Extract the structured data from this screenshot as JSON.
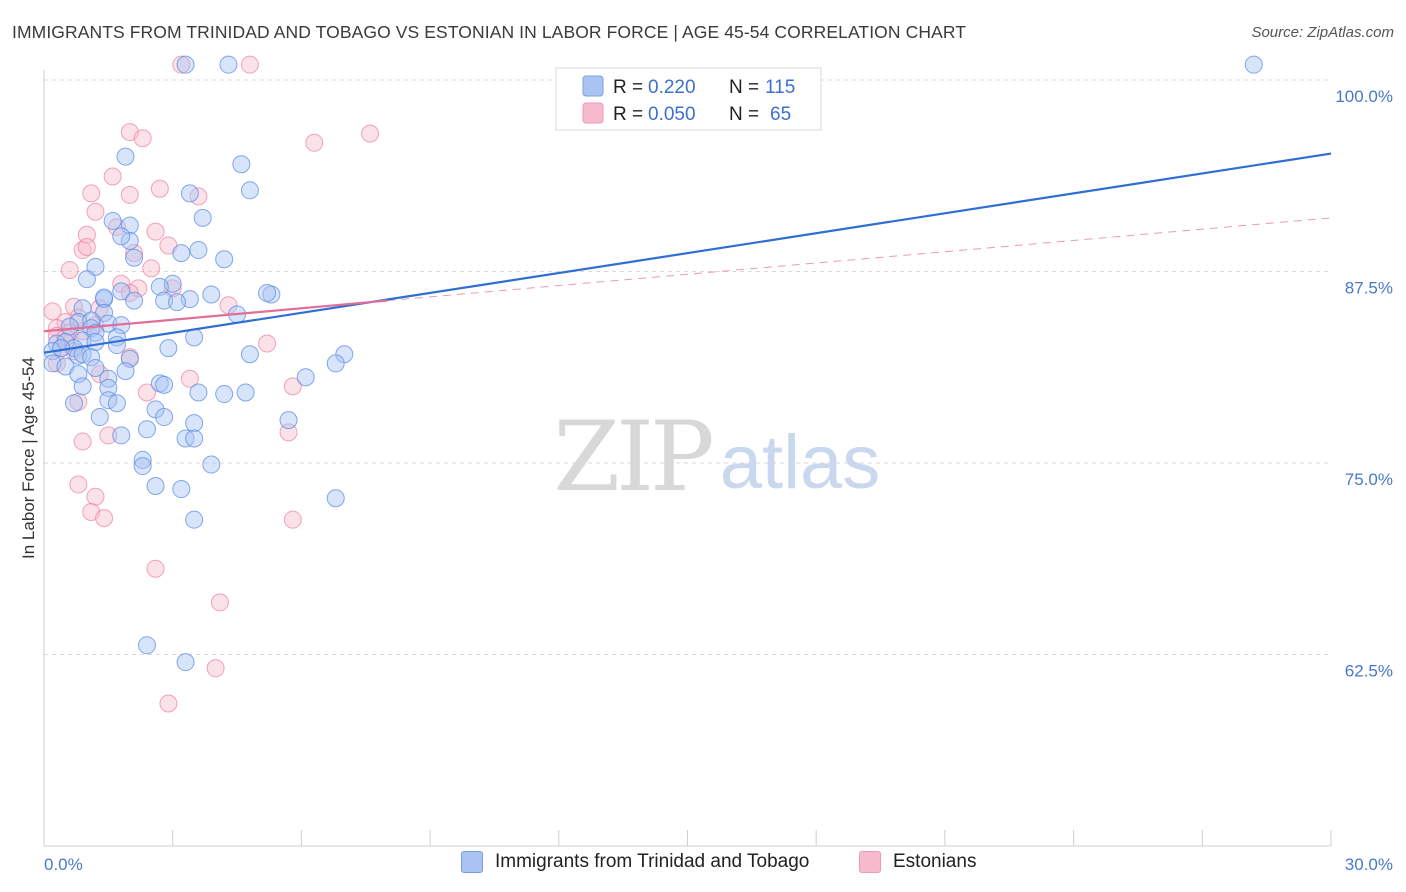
{
  "title": "IMMIGRANTS FROM TRINIDAD AND TOBAGO VS ESTONIAN IN LABOR FORCE | AGE 45-54 CORRELATION CHART",
  "source": "Source: ZipAtlas.com",
  "watermark": {
    "zip": "ZIP",
    "atlas": "atlas"
  },
  "legend": {
    "r_label": "R =",
    "n_label": "N =",
    "rows": [
      {
        "r": "0.220",
        "n": "115"
      },
      {
        "r": "0.050",
        "n": "65"
      }
    ]
  },
  "bottom_legend": {
    "series1": "Immigrants from Trinidad and Tobago",
    "series2": "Estonians"
  },
  "chart_data": {
    "type": "scatter",
    "title": "IMMIGRANTS FROM TRINIDAD AND TOBAGO VS ESTONIAN IN LABOR FORCE | AGE 45-54 CORRELATION CHART",
    "xlabel": "",
    "ylabel": "In Labor Force | Age 45-54",
    "xlim": [
      0,
      30
    ],
    "ylim": [
      50,
      100
    ],
    "x_tick_labels": [
      "0.0%",
      "30.0%"
    ],
    "y_ticks": [
      62.5,
      75.0,
      87.5,
      100.0
    ],
    "y_tick_labels": [
      "62.5%",
      "75.0%",
      "87.5%",
      "100.0%"
    ],
    "grid": true,
    "legend_position": "top-center",
    "colors": {
      "series1": "#5b8ee6",
      "series1_fill": "#a9c4f2",
      "series2": "#ec7fa0",
      "series2_fill": "#f6bccd",
      "trend1": "#2f6fd4",
      "trend2": "#e0709a"
    },
    "series": [
      {
        "name": "Immigrants from Trinidad and Tobago",
        "R": 0.22,
        "N": 115,
        "trend": {
          "x": [
            0,
            30
          ],
          "y": [
            82.2,
            95.2
          ]
        },
        "points": [
          [
            3.3,
            101.0
          ],
          [
            4.3,
            101.0
          ],
          [
            28.2,
            101.0
          ],
          [
            1.9,
            95.0
          ],
          [
            4.6,
            94.5
          ],
          [
            3.4,
            92.6
          ],
          [
            4.8,
            92.8
          ],
          [
            3.7,
            91.0
          ],
          [
            1.6,
            90.8
          ],
          [
            2.0,
            90.5
          ],
          [
            2.0,
            89.5
          ],
          [
            1.8,
            89.8
          ],
          [
            3.6,
            88.9
          ],
          [
            3.2,
            88.7
          ],
          [
            2.1,
            88.4
          ],
          [
            4.2,
            88.3
          ],
          [
            1.2,
            87.8
          ],
          [
            1.0,
            87.0
          ],
          [
            1.8,
            86.2
          ],
          [
            3.0,
            86.7
          ],
          [
            2.7,
            86.5
          ],
          [
            3.9,
            86.0
          ],
          [
            5.3,
            86.0
          ],
          [
            5.2,
            86.1
          ],
          [
            1.4,
            85.7
          ],
          [
            1.4,
            85.8
          ],
          [
            2.1,
            85.6
          ],
          [
            2.8,
            85.6
          ],
          [
            3.4,
            85.7
          ],
          [
            3.1,
            85.5
          ],
          [
            4.5,
            84.7
          ],
          [
            0.9,
            85.1
          ],
          [
            1.4,
            84.8
          ],
          [
            0.8,
            84.2
          ],
          [
            1.1,
            84.3
          ],
          [
            1.5,
            84.1
          ],
          [
            0.6,
            83.9
          ],
          [
            1.8,
            84.0
          ],
          [
            1.1,
            83.8
          ],
          [
            1.2,
            83.5
          ],
          [
            0.9,
            83.0
          ],
          [
            1.7,
            83.2
          ],
          [
            3.5,
            83.2
          ],
          [
            0.3,
            82.8
          ],
          [
            0.5,
            82.9
          ],
          [
            0.7,
            82.5
          ],
          [
            1.2,
            82.9
          ],
          [
            1.7,
            82.7
          ],
          [
            2.9,
            82.5
          ],
          [
            0.2,
            82.3
          ],
          [
            0.4,
            82.5
          ],
          [
            0.8,
            82.0
          ],
          [
            0.9,
            82.1
          ],
          [
            1.1,
            81.9
          ],
          [
            2.0,
            81.8
          ],
          [
            4.8,
            82.1
          ],
          [
            7.0,
            82.1
          ],
          [
            0.2,
            81.5
          ],
          [
            0.5,
            81.3
          ],
          [
            1.2,
            81.2
          ],
          [
            1.9,
            81.0
          ],
          [
            6.8,
            81.5
          ],
          [
            0.8,
            80.8
          ],
          [
            1.5,
            80.5
          ],
          [
            6.1,
            80.6
          ],
          [
            2.7,
            80.2
          ],
          [
            2.8,
            80.1
          ],
          [
            0.9,
            80.0
          ],
          [
            1.5,
            79.9
          ],
          [
            3.6,
            79.6
          ],
          [
            4.2,
            79.5
          ],
          [
            4.7,
            79.6
          ],
          [
            1.5,
            79.1
          ],
          [
            1.7,
            78.9
          ],
          [
            0.7,
            78.9
          ],
          [
            2.6,
            78.5
          ],
          [
            1.3,
            78.0
          ],
          [
            2.8,
            78.0
          ],
          [
            3.5,
            77.6
          ],
          [
            5.7,
            77.8
          ],
          [
            2.4,
            77.2
          ],
          [
            1.8,
            76.8
          ],
          [
            3.3,
            76.6
          ],
          [
            3.5,
            76.6
          ],
          [
            2.3,
            75.2
          ],
          [
            2.3,
            74.8
          ],
          [
            3.9,
            74.9
          ],
          [
            2.6,
            73.5
          ],
          [
            3.2,
            73.3
          ],
          [
            6.8,
            72.7
          ],
          [
            3.5,
            71.3
          ],
          [
            2.4,
            63.1
          ],
          [
            3.3,
            62.0
          ]
        ]
      },
      {
        "name": "Estonians",
        "R": 0.05,
        "N": 65,
        "trend_solid": {
          "x": [
            0,
            8
          ],
          "y": [
            83.6,
            85.6
          ]
        },
        "trend_dashed": {
          "x": [
            8,
            30
          ],
          "y": [
            85.6,
            91.0
          ]
        },
        "points": [
          [
            3.2,
            101.0
          ],
          [
            4.8,
            101.0
          ],
          [
            2.0,
            96.6
          ],
          [
            2.3,
            96.2
          ],
          [
            6.3,
            95.9
          ],
          [
            7.6,
            96.5
          ],
          [
            1.6,
            93.7
          ],
          [
            2.7,
            92.9
          ],
          [
            1.1,
            92.6
          ],
          [
            2.0,
            92.5
          ],
          [
            3.6,
            92.4
          ],
          [
            1.2,
            91.4
          ],
          [
            1.7,
            90.4
          ],
          [
            2.6,
            90.1
          ],
          [
            1.0,
            89.9
          ],
          [
            2.9,
            89.2
          ],
          [
            0.9,
            88.9
          ],
          [
            1.0,
            89.1
          ],
          [
            2.1,
            88.7
          ],
          [
            0.6,
            87.6
          ],
          [
            2.5,
            87.7
          ],
          [
            1.8,
            86.7
          ],
          [
            2.2,
            86.4
          ],
          [
            3.0,
            86.4
          ],
          [
            2.0,
            86.1
          ],
          [
            4.3,
            85.3
          ],
          [
            0.2,
            84.9
          ],
          [
            0.7,
            85.2
          ],
          [
            1.3,
            85.1
          ],
          [
            0.8,
            84.5
          ],
          [
            0.5,
            84.2
          ],
          [
            1.2,
            84.0
          ],
          [
            0.3,
            83.8
          ],
          [
            0.6,
            83.5
          ],
          [
            0.9,
            83.6
          ],
          [
            0.3,
            83.3
          ],
          [
            0.5,
            83.2
          ],
          [
            5.2,
            82.8
          ],
          [
            0.4,
            82.5
          ],
          [
            0.7,
            82.3
          ],
          [
            2.0,
            81.9
          ],
          [
            0.3,
            81.5
          ],
          [
            1.3,
            80.8
          ],
          [
            3.4,
            80.5
          ],
          [
            5.8,
            80.0
          ],
          [
            2.4,
            79.6
          ],
          [
            0.8,
            79.0
          ],
          [
            5.7,
            77.0
          ],
          [
            1.5,
            76.8
          ],
          [
            0.9,
            76.4
          ],
          [
            0.8,
            73.6
          ],
          [
            1.2,
            72.8
          ],
          [
            1.1,
            71.8
          ],
          [
            1.4,
            71.4
          ],
          [
            5.8,
            71.3
          ],
          [
            2.6,
            68.1
          ],
          [
            4.1,
            65.9
          ],
          [
            4.0,
            61.6
          ],
          [
            2.9,
            59.3
          ]
        ]
      }
    ]
  }
}
